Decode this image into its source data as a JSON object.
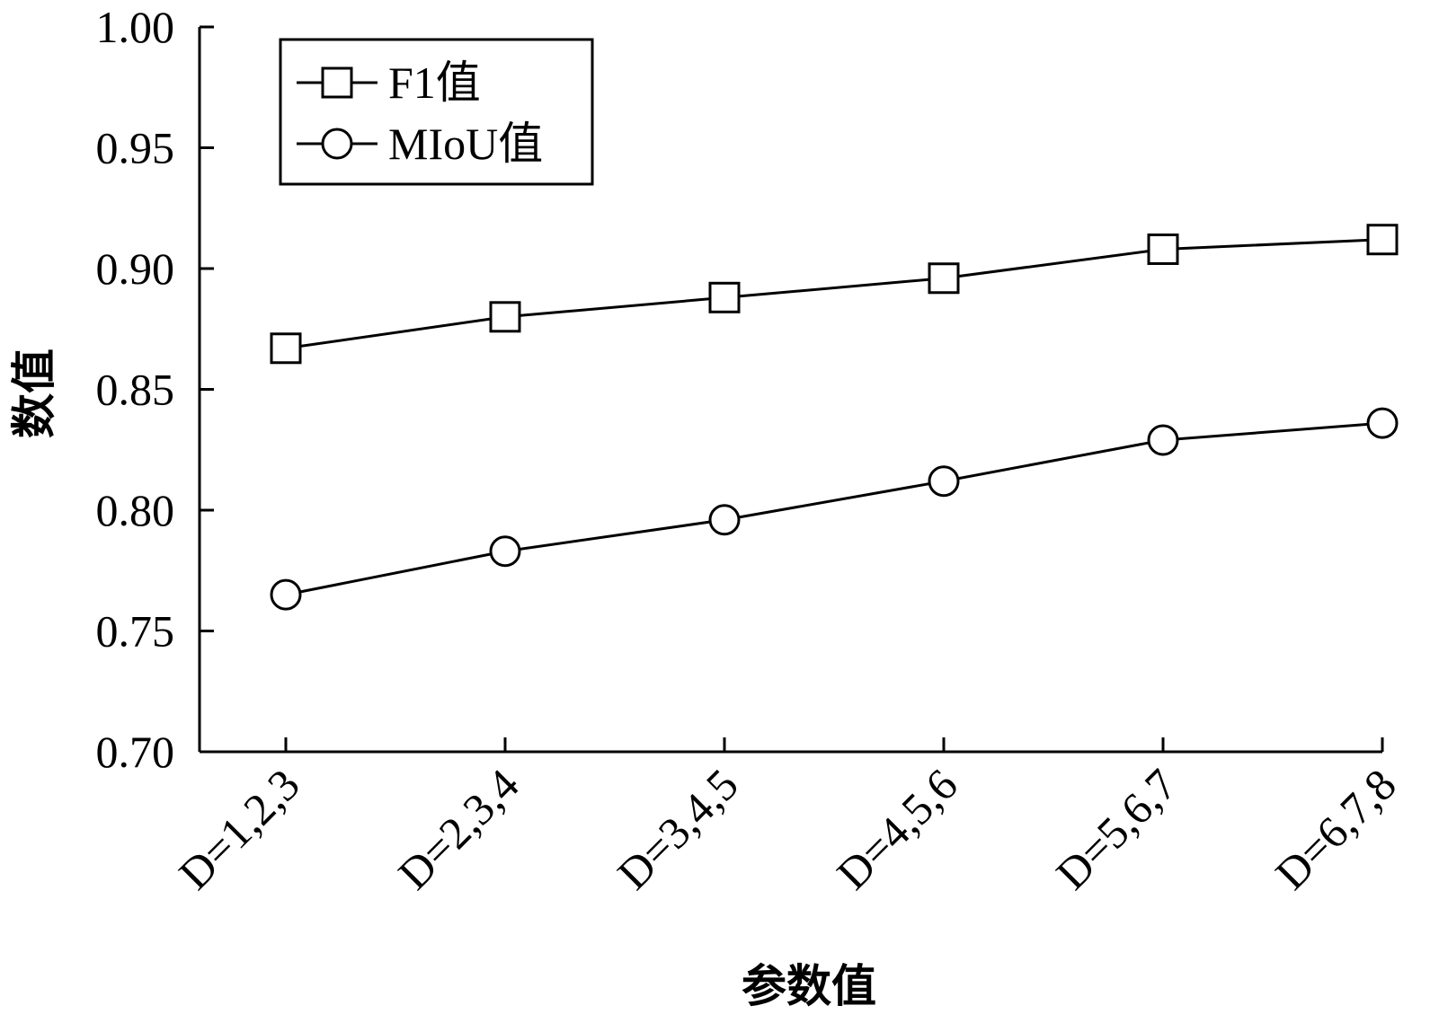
{
  "chart_data": {
    "type": "line",
    "xlabel": "参数值",
    "ylabel": "数值",
    "categories": [
      "D=1,2,3",
      "D=2,3,4",
      "D=3,4,5",
      "D=4,5,6",
      "D=5,6,7",
      "D=6,7,8"
    ],
    "ylim": [
      0.7,
      1.0
    ],
    "yticks": [
      "0.70",
      "0.75",
      "0.80",
      "0.85",
      "0.90",
      "0.95",
      "1.00"
    ],
    "grid": false,
    "legend_position": "top-left",
    "series": [
      {
        "name": "F1值",
        "marker": "square",
        "color": "#000000",
        "values": [
          0.867,
          0.88,
          0.888,
          0.896,
          0.908,
          0.912
        ]
      },
      {
        "name": "MIoU值",
        "marker": "circle",
        "color": "#000000",
        "values": [
          0.765,
          0.783,
          0.796,
          0.812,
          0.829,
          0.836
        ]
      }
    ]
  }
}
